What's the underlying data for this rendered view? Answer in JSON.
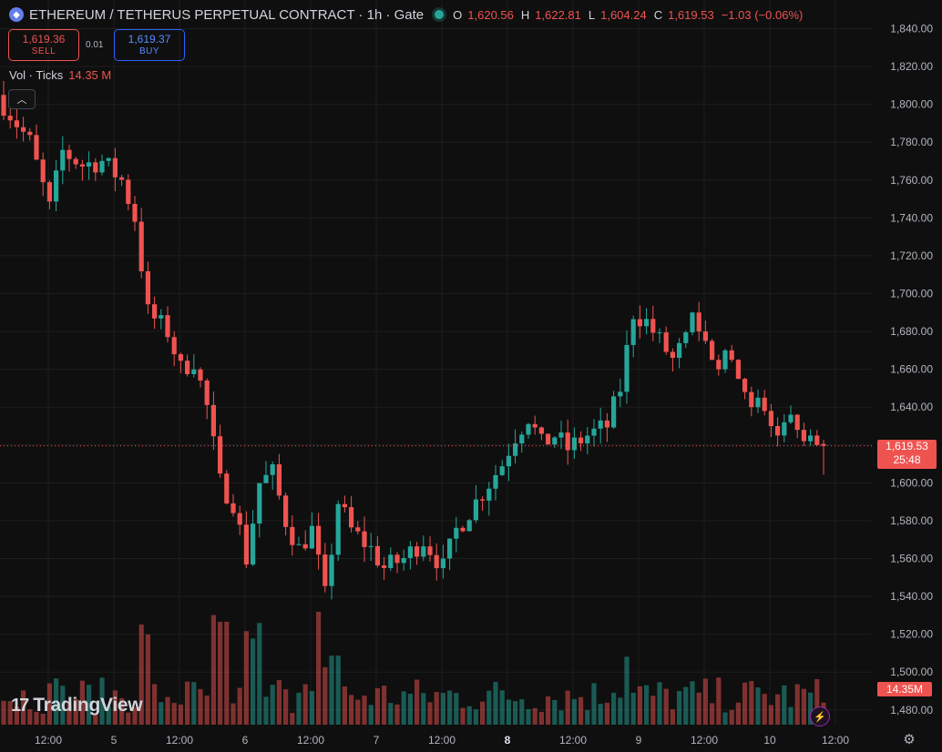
{
  "header": {
    "title": "ETHEREUM / TETHERUS PERPETUAL CONTRACT · 1h · Gate",
    "ohlc": {
      "o_label": "O",
      "o": "1,620.56",
      "h_label": "H",
      "h": "1,622.81",
      "l_label": "L",
      "l": "1,604.24",
      "c_label": "C",
      "c": "1,619.53",
      "change": "−1.03 (−0.06%)"
    }
  },
  "trade": {
    "sell_price": "1,619.36",
    "sell_label": "SELL",
    "spread": "0.01",
    "buy_price": "1,619.37",
    "buy_label": "BUY"
  },
  "volume_legend": {
    "label": "Vol · Ticks",
    "value": "14.35 M"
  },
  "last_price": {
    "price": "1,619.53",
    "countdown": "25:48"
  },
  "volume_tag": "14.35M",
  "logo_text": "TradingView",
  "colors": {
    "up": "#26a69a",
    "down": "#ef5350",
    "background": "#0f0f0f",
    "grid": "#1e1e1e"
  },
  "chart_data": {
    "type": "candlestick",
    "symbol": "ETHEREUM / TETHERUS PERPETUAL CONTRACT",
    "interval": "1h",
    "ylim": [
      1475,
      1845
    ],
    "y_ticks": [
      "1,840.00",
      "1,820.00",
      "1,800.00",
      "1,780.00",
      "1,760.00",
      "1,740.00",
      "1,720.00",
      "1,700.00",
      "1,680.00",
      "1,660.00",
      "1,640.00",
      "1,620.00",
      "1,600.00",
      "1,580.00",
      "1,560.00",
      "1,540.00",
      "1,520.00",
      "1,500.00",
      "1,480.00"
    ],
    "x_ticks": [
      "12:00",
      "5",
      "12:00",
      "6",
      "12:00",
      "7",
      "12:00",
      "8",
      "12:00",
      "9",
      "12:00",
      "10",
      "12:00"
    ],
    "anchors": [
      [
        1790,
        1800
      ],
      [
        1760,
        1730
      ],
      [
        1780,
        1790
      ],
      [
        1775,
        1760
      ],
      [
        1770,
        1730
      ],
      [
        1690,
        1660
      ],
      [
        1690,
        1665
      ],
      [
        1610,
        1600
      ],
      [
        1550,
        1545
      ],
      [
        1610,
        1570
      ],
      [
        1570,
        1570
      ],
      [
        1560,
        1555
      ],
      [
        1600,
        1620
      ],
      [
        1640,
        1620
      ],
      [
        1615,
        1625
      ],
      [
        1690,
        1685
      ],
      [
        1695,
        1665
      ],
      [
        1680,
        1695
      ],
      [
        1680,
        1690
      ],
      [
        1700,
        1675
      ],
      [
        1680,
        1670
      ],
      [
        1660,
        1670
      ],
      [
        1645,
        1640
      ],
      [
        1630,
        1619.53
      ]
    ],
    "volume": {
      "label": "Vol · Ticks",
      "last": 14.35,
      "unit": "M"
    }
  }
}
